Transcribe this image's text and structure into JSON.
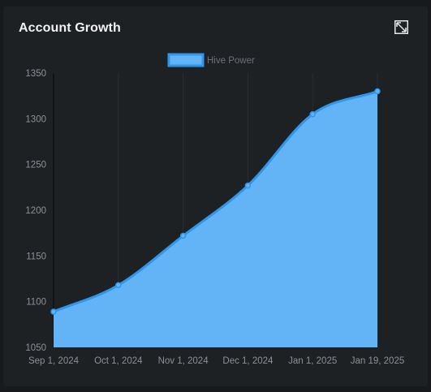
{
  "card": {
    "title": "Account Growth",
    "expand_icon": "expand-icon"
  },
  "chart_data": {
    "type": "area",
    "title": "",
    "xlabel": "",
    "ylabel": "",
    "legend": {
      "position": "top-center",
      "entries": [
        "Hive Power"
      ]
    },
    "x": [
      "Sep 1, 2024",
      "Oct 1, 2024",
      "Nov 1, 2024",
      "Dec 1, 2024",
      "Jan 1, 2025",
      "Jan 19, 2025"
    ],
    "series": [
      {
        "name": "Hive Power",
        "values": [
          1089,
          1118,
          1172,
          1227,
          1305,
          1330
        ]
      }
    ],
    "ylim": [
      1050,
      1350
    ],
    "yticks": [
      1050,
      1100,
      1150,
      1200,
      1250,
      1300,
      1350
    ],
    "grid": "vertical",
    "colors": {
      "fill": "#62b4f6",
      "line": "#2f96ec",
      "grid": "#2a2d31",
      "axis": "#0f1113"
    }
  }
}
